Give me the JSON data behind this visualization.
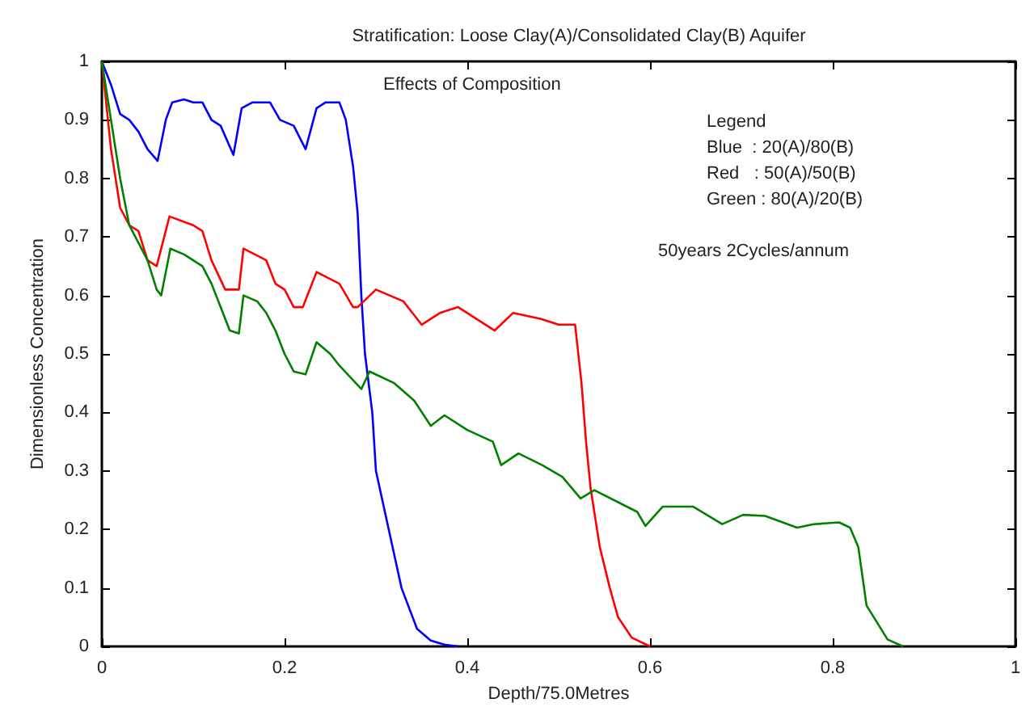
{
  "chart_data": {
    "type": "line",
    "title": "Stratification: Loose Clay(A)/Consolidated Clay(B) Aquifer",
    "xlabel": "Depth/75.0Metres",
    "ylabel": "Dimensionless Concentration",
    "annotations": [
      "Effects of Composition",
      "Legend",
      "Blue  : 20(A)/80(B)",
      "Red   : 50(A)/50(B)",
      "Green : 80(A)/20(B)",
      "50years 2Cycles/annum"
    ],
    "xlim": [
      0,
      1
    ],
    "xticks": [
      0,
      0.2,
      0.4,
      0.6,
      0.8,
      1
    ],
    "ylim": [
      0,
      1
    ],
    "yticks": [
      0,
      0.1,
      0.2,
      0.3,
      0.4,
      0.5,
      0.6,
      0.7,
      0.8,
      0.9,
      1
    ],
    "grid": false,
    "marker": "none",
    "line_style": "solid",
    "series": [
      {
        "color": "#0000ff",
        "x": [
          0,
          0.01,
          0.02,
          0.03,
          0.04,
          0.05,
          0.061,
          0.07,
          0.077,
          0.09,
          0.1,
          0.11,
          0.12,
          0.13,
          0.144,
          0.153,
          0.165,
          0.184,
          0.195,
          0.21,
          0.223,
          0.235,
          0.245,
          0.26,
          0.267,
          0.275,
          0.28,
          0.284,
          0.288,
          0.296,
          0.3,
          0.314,
          0.328,
          0.345,
          0.36,
          0.375,
          0.39
        ],
        "values": [
          1,
          0.96,
          0.91,
          0.9,
          0.88,
          0.85,
          0.83,
          0.9,
          0.93,
          0.935,
          0.93,
          0.93,
          0.9,
          0.89,
          0.84,
          0.92,
          0.93,
          0.93,
          0.9,
          0.89,
          0.85,
          0.92,
          0.93,
          0.93,
          0.9,
          0.82,
          0.74,
          0.6,
          0.5,
          0.4,
          0.3,
          0.2,
          0.1,
          0.03,
          0.01,
          0.003,
          0
        ]
      },
      {
        "color": "#ff0000",
        "x": [
          0,
          0.01,
          0.02,
          0.03,
          0.04,
          0.05,
          0.06,
          0.074,
          0.1,
          0.11,
          0.12,
          0.135,
          0.15,
          0.155,
          0.18,
          0.19,
          0.2,
          0.21,
          0.22,
          0.235,
          0.26,
          0.275,
          0.28,
          0.3,
          0.33,
          0.35,
          0.37,
          0.39,
          0.41,
          0.43,
          0.45,
          0.48,
          0.5,
          0.518,
          0.525,
          0.53,
          0.535,
          0.545,
          0.556,
          0.565,
          0.58,
          0.6
        ],
        "values": [
          1,
          0.85,
          0.75,
          0.72,
          0.71,
          0.66,
          0.65,
          0.735,
          0.72,
          0.71,
          0.66,
          0.61,
          0.61,
          0.68,
          0.66,
          0.62,
          0.61,
          0.58,
          0.58,
          0.64,
          0.62,
          0.58,
          0.58,
          0.61,
          0.59,
          0.55,
          0.57,
          0.58,
          0.56,
          0.54,
          0.57,
          0.56,
          0.55,
          0.55,
          0.45,
          0.35,
          0.27,
          0.17,
          0.1,
          0.05,
          0.015,
          0
        ]
      },
      {
        "color": "#008000",
        "x": [
          0,
          0.01,
          0.02,
          0.03,
          0.04,
          0.05,
          0.06,
          0.065,
          0.075,
          0.09,
          0.11,
          0.12,
          0.13,
          0.14,
          0.15,
          0.155,
          0.17,
          0.18,
          0.19,
          0.2,
          0.21,
          0.223,
          0.235,
          0.25,
          0.26,
          0.284,
          0.293,
          0.32,
          0.342,
          0.36,
          0.375,
          0.4,
          0.428,
          0.437,
          0.456,
          0.482,
          0.504,
          0.524,
          0.539,
          0.586,
          0.595,
          0.614,
          0.647,
          0.679,
          0.702,
          0.726,
          0.761,
          0.779,
          0.807,
          0.819,
          0.828,
          0.837,
          0.86,
          0.877
        ],
        "values": [
          1,
          0.9,
          0.8,
          0.72,
          0.69,
          0.66,
          0.61,
          0.6,
          0.68,
          0.67,
          0.65,
          0.62,
          0.58,
          0.54,
          0.535,
          0.6,
          0.59,
          0.57,
          0.54,
          0.5,
          0.47,
          0.465,
          0.52,
          0.5,
          0.48,
          0.44,
          0.47,
          0.45,
          0.42,
          0.377,
          0.395,
          0.37,
          0.35,
          0.31,
          0.33,
          0.31,
          0.29,
          0.253,
          0.267,
          0.23,
          0.206,
          0.239,
          0.239,
          0.209,
          0.225,
          0.223,
          0.203,
          0.209,
          0.212,
          0.203,
          0.17,
          0.07,
          0.012,
          0
        ]
      }
    ]
  }
}
